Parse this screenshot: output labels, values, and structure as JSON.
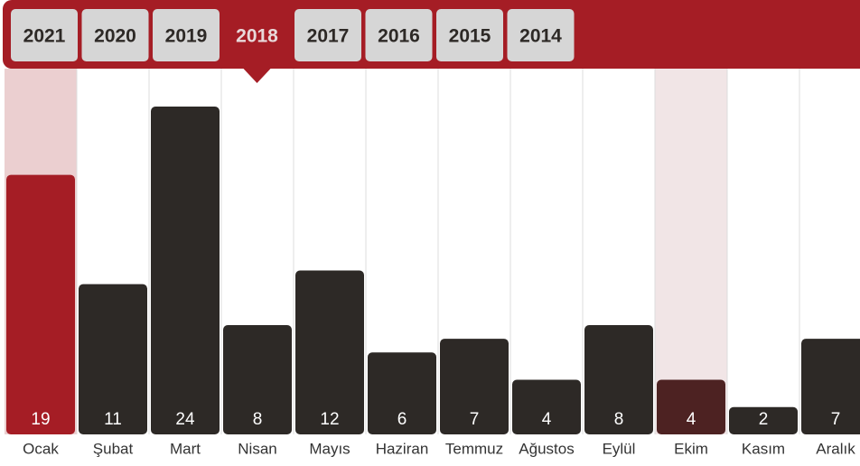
{
  "tabs": {
    "years": [
      "2021",
      "2020",
      "2019",
      "2018",
      "2017",
      "2016",
      "2015",
      "2014"
    ],
    "active": 3
  },
  "chart_data": {
    "type": "bar",
    "categories": [
      "Ocak",
      "Şubat",
      "Mart",
      "Nisan",
      "Mayıs",
      "Haziran",
      "Temmuz",
      "Ağustos",
      "Eylül",
      "Ekim",
      "Kasım",
      "Aralık"
    ],
    "values": [
      19,
      11,
      24,
      8,
      12,
      6,
      7,
      4,
      8,
      4,
      2,
      7
    ],
    "colors": [
      "#a51d25",
      "#2d2926",
      "#2d2926",
      "#2d2926",
      "#2d2926",
      "#2d2926",
      "#2d2926",
      "#2d2926",
      "#2d2926",
      "#4d2222",
      "#2d2926",
      "#2d2926"
    ],
    "column_backgrounds": [
      "#ebcfd0",
      null,
      null,
      null,
      null,
      null,
      null,
      null,
      null,
      "#f1e5e6",
      null,
      null
    ]
  }
}
